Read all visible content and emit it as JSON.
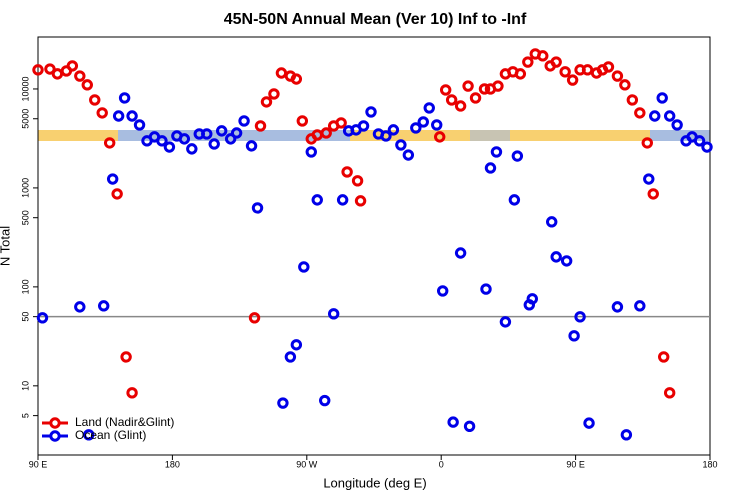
{
  "chart_data": {
    "type": "scatter",
    "title": "45N-50N Annual Mean (Ver 10)   Inf to -Inf",
    "x_label": "Longitude (deg E)",
    "y_label": "N Total",
    "xlim": [
      90,
      540
    ],
    "xticks": [
      {
        "value": 90,
        "label": "90 E"
      },
      {
        "value": 180,
        "label": "180"
      },
      {
        "value": 270,
        "label": "90 W"
      },
      {
        "value": 360,
        "label": "0"
      },
      {
        "value": 450,
        "label": "90 E"
      },
      {
        "value": 540,
        "label": "180"
      }
    ],
    "ylim": [
      2,
      33500
    ],
    "log_y": true,
    "yticks": [
      5,
      10,
      50,
      100,
      500,
      1000,
      5000,
      10000
    ],
    "hline": 50,
    "hline_color": "#888888",
    "legend": "lower left",
    "series": [
      {
        "name": "Land (Nadir&Glint)",
        "color": "#e80000",
        "x": [
          90,
          98,
          103,
          109,
          113,
          118,
          123,
          128,
          133,
          138,
          143,
          149,
          153,
          235,
          239,
          243,
          248,
          253,
          259,
          263,
          267,
          273,
          277,
          283,
          288,
          293,
          297,
          304,
          306,
          359,
          363,
          367,
          373,
          378,
          383,
          389,
          393,
          398,
          403,
          408,
          413,
          418,
          423,
          428,
          433,
          437,
          443,
          448,
          453,
          458,
          464,
          468,
          472,
          478,
          483,
          488,
          493,
          498,
          502,
          509,
          513
        ],
        "values": [
          15600,
          15900,
          14200,
          15200,
          17100,
          13500,
          11000,
          7740,
          5730,
          2850,
          870,
          19.6,
          8.5,
          48.7,
          4230,
          7400,
          8900,
          14500,
          13500,
          12600,
          4750,
          3130,
          3430,
          3590,
          4230,
          4540,
          1450,
          1180,
          740,
          3280,
          9770,
          7740,
          6730,
          10700,
          8110,
          10000,
          10000,
          10700,
          14200,
          14900,
          14200,
          18700,
          22600,
          21600,
          17100,
          18700,
          14900,
          12300,
          15600,
          15600,
          14500,
          15600,
          16700,
          13500,
          11000,
          7740,
          5730,
          2850,
          870,
          19.6,
          8.5
        ]
      },
      {
        "name": "Ocean (Glint)",
        "color": "#0000e8",
        "x": [
          93,
          118,
          124,
          134,
          140,
          144,
          148,
          153,
          158,
          163,
          168,
          173,
          178,
          183,
          188,
          193,
          198,
          203,
          208,
          213,
          219,
          223,
          228,
          233,
          237,
          254,
          259,
          263,
          268,
          273,
          277,
          282,
          288,
          294,
          298,
          303,
          308,
          313,
          318,
          323,
          328,
          333,
          338,
          343,
          348,
          352,
          357,
          361,
          368,
          373,
          379,
          390,
          393,
          397,
          403,
          409,
          411,
          419,
          421,
          434,
          437,
          444,
          449,
          453,
          459,
          478,
          484,
          493,
          499,
          503,
          508,
          513,
          518,
          524,
          528,
          533,
          538
        ],
        "values": [
          48.7,
          62.8,
          3.2,
          64.3,
          1230,
          5330,
          8110,
          5330,
          4330,
          2990,
          3280,
          2990,
          2590,
          3350,
          3130,
          2480,
          3510,
          3510,
          2780,
          3770,
          3130,
          3590,
          4750,
          2660,
          628,
          6.7,
          19.6,
          26,
          159,
          2310,
          757,
          7.1,
          53.4,
          757,
          3770,
          3860,
          4230,
          5860,
          3510,
          3350,
          3860,
          2720,
          2150,
          4040,
          4640,
          6430,
          4330,
          91,
          4.3,
          220,
          3.9,
          95,
          1590,
          2310,
          44.3,
          757,
          2100,
          65.8,
          75.7,
          454,
          201,
          183,
          32,
          49.8,
          4.2,
          62.8,
          3.2,
          64.3,
          1230,
          5330,
          8110,
          5330,
          4330,
          2990,
          3280,
          2990,
          2590
        ]
      }
    ]
  }
}
